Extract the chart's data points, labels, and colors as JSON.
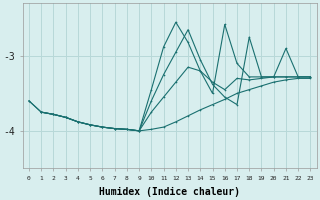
{
  "xlabel": "Humidex (Indice chaleur)",
  "bg_color": "#d8eeee",
  "grid_color": "#b8d8d8",
  "line_color": "#1a7070",
  "xlim": [
    -0.5,
    23.5
  ],
  "ylim": [
    -4.5,
    -2.3
  ],
  "yticks": [
    -4,
    -3
  ],
  "xticks": [
    0,
    1,
    2,
    3,
    4,
    5,
    6,
    7,
    8,
    9,
    10,
    11,
    12,
    13,
    14,
    15,
    16,
    17,
    18,
    19,
    20,
    21,
    22,
    23
  ],
  "lines": [
    {
      "x": [
        0,
        1,
        2,
        3,
        4,
        5,
        6,
        7,
        8,
        9,
        10,
        11,
        12,
        13,
        14,
        15,
        16,
        17,
        18,
        19,
        20,
        21,
        22,
        23
      ],
      "y": [
        -3.6,
        -3.75,
        -3.78,
        -3.82,
        -3.88,
        -3.92,
        -3.95,
        -3.97,
        -3.98,
        -4.0,
        -3.98,
        -3.95,
        -3.88,
        -3.8,
        -3.72,
        -3.65,
        -3.58,
        -3.5,
        -3.45,
        -3.4,
        -3.35,
        -3.32,
        -3.3,
        -3.3
      ]
    },
    {
      "x": [
        1,
        2,
        3,
        4,
        5,
        6,
        7,
        8,
        9,
        10,
        11,
        12,
        13,
        14,
        15,
        16,
        17,
        18,
        19,
        20,
        21,
        22,
        23
      ],
      "y": [
        -3.75,
        -3.78,
        -3.82,
        -3.88,
        -3.92,
        -3.95,
        -3.97,
        -3.98,
        -4.0,
        -3.75,
        -3.55,
        -3.35,
        -3.15,
        -3.2,
        -3.35,
        -3.45,
        -3.3,
        -3.32,
        -3.3,
        -3.28,
        -3.28,
        -3.28,
        -3.28
      ]
    },
    {
      "x": [
        1,
        2,
        3,
        4,
        5,
        6,
        7,
        8,
        9,
        10,
        11,
        12,
        13,
        14,
        15,
        16,
        17,
        18,
        19,
        20,
        21,
        22,
        23
      ],
      "y": [
        -3.75,
        -3.78,
        -3.82,
        -3.88,
        -3.92,
        -3.95,
        -3.97,
        -3.98,
        -4.0,
        -3.6,
        -3.25,
        -2.95,
        -2.65,
        -3.05,
        -3.38,
        -3.55,
        -3.65,
        -2.75,
        -3.28,
        -3.28,
        -3.28,
        -3.28,
        -3.28
      ]
    },
    {
      "x": [
        0,
        1,
        2,
        3,
        4,
        5,
        6,
        7,
        8,
        9,
        10,
        11,
        12,
        13,
        14,
        15,
        16,
        17,
        18,
        19,
        20,
        21,
        22,
        23
      ],
      "y": [
        -3.6,
        -3.75,
        -3.78,
        -3.82,
        -3.88,
        -3.92,
        -3.95,
        -3.97,
        -3.98,
        -4.0,
        -3.45,
        -2.88,
        -2.55,
        -2.82,
        -3.2,
        -3.5,
        -2.58,
        -3.1,
        -3.28,
        -3.28,
        -3.28,
        -2.9,
        -3.28,
        -3.28
      ]
    }
  ]
}
